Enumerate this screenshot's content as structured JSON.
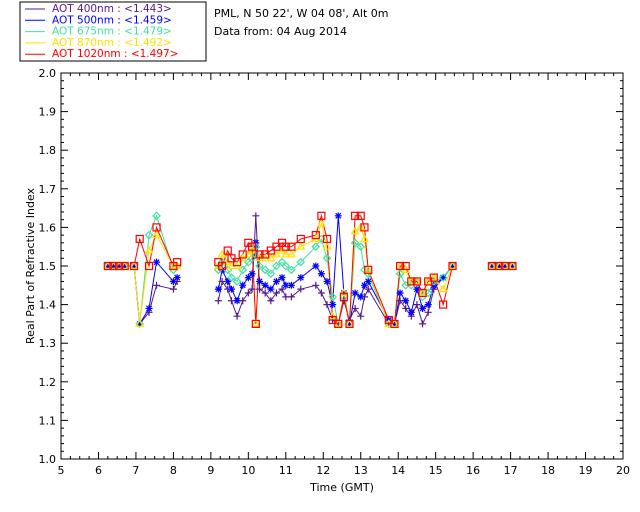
{
  "header": {
    "site": "PML, N 50 22', W 04 08', Alt 0m",
    "date": "Data from: 04 Aug 2014"
  },
  "chart_data": {
    "type": "scatter",
    "xlabel": "Time (GMT)",
    "ylabel": "Real Part of Refractive Index",
    "xlim": [
      5,
      20
    ],
    "ylim": [
      1.0,
      2.0
    ],
    "xticks": [
      "5",
      "6",
      "7",
      "8",
      "9",
      "10",
      "11",
      "12",
      "13",
      "14",
      "15",
      "16",
      "17",
      "18",
      "19",
      "20"
    ],
    "yticks": [
      "1.0",
      "1.1",
      "1.2",
      "1.3",
      "1.4",
      "1.5",
      "1.6",
      "1.7",
      "1.8",
      "1.9",
      "2.0"
    ],
    "grid": false,
    "legend_position": "top-left-outside",
    "series": [
      {
        "name": "AOT  400nm : <1.443>",
        "color": "#551a8b",
        "marker": "plus",
        "points": [
          [
            6.25,
            1.5
          ],
          [
            6.4,
            1.5
          ],
          [
            6.55,
            1.5
          ],
          [
            6.7,
            1.5
          ],
          [
            6.95,
            1.5
          ],
          [
            7.1,
            1.35
          ],
          [
            7.35,
            1.38
          ],
          [
            7.55,
            1.45
          ],
          [
            8.0,
            1.44
          ],
          [
            8.1,
            1.46
          ],
          [
            9.2,
            1.41
          ],
          [
            9.3,
            1.46
          ],
          [
            9.45,
            1.44
          ],
          [
            9.55,
            1.41
          ],
          [
            9.7,
            1.37
          ],
          [
            9.85,
            1.41
          ],
          [
            10.0,
            1.43
          ],
          [
            10.1,
            1.44
          ],
          [
            10.2,
            1.63
          ],
          [
            10.3,
            1.44
          ],
          [
            10.45,
            1.43
          ],
          [
            10.6,
            1.41
          ],
          [
            10.75,
            1.43
          ],
          [
            10.9,
            1.44
          ],
          [
            11.0,
            1.42
          ],
          [
            11.15,
            1.42
          ],
          [
            11.4,
            1.44
          ],
          [
            11.8,
            1.45
          ],
          [
            11.95,
            1.43
          ],
          [
            12.1,
            1.4
          ],
          [
            12.25,
            1.36
          ],
          [
            12.4,
            1.35
          ],
          [
            12.55,
            1.41
          ],
          [
            12.7,
            1.36
          ],
          [
            12.85,
            1.39
          ],
          [
            13.0,
            1.37
          ],
          [
            13.1,
            1.42
          ],
          [
            13.2,
            1.44
          ],
          [
            13.75,
            1.35
          ],
          [
            13.9,
            1.35
          ],
          [
            14.05,
            1.41
          ],
          [
            14.2,
            1.39
          ],
          [
            14.35,
            1.37
          ],
          [
            14.5,
            1.4
          ],
          [
            14.65,
            1.35
          ],
          [
            14.8,
            1.38
          ],
          [
            14.95,
            1.44
          ],
          [
            15.2,
            1.47
          ],
          [
            15.45,
            1.5
          ],
          [
            16.5,
            1.5
          ],
          [
            16.7,
            1.5
          ],
          [
            16.85,
            1.5
          ],
          [
            17.05,
            1.5
          ]
        ]
      },
      {
        "name": "AOT  500nm : <1.459>",
        "color": "#0000ff",
        "marker": "asterisk",
        "points": [
          [
            6.25,
            1.5
          ],
          [
            6.4,
            1.5
          ],
          [
            6.55,
            1.5
          ],
          [
            6.7,
            1.5
          ],
          [
            6.95,
            1.5
          ],
          [
            7.1,
            1.35
          ],
          [
            7.35,
            1.39
          ],
          [
            7.55,
            1.51
          ],
          [
            8.0,
            1.46
          ],
          [
            8.1,
            1.47
          ],
          [
            9.2,
            1.44
          ],
          [
            9.3,
            1.49
          ],
          [
            9.45,
            1.46
          ],
          [
            9.55,
            1.44
          ],
          [
            9.7,
            1.41
          ],
          [
            9.85,
            1.45
          ],
          [
            10.0,
            1.47
          ],
          [
            10.1,
            1.48
          ],
          [
            10.2,
            1.56
          ],
          [
            10.3,
            1.46
          ],
          [
            10.45,
            1.45
          ],
          [
            10.6,
            1.44
          ],
          [
            10.75,
            1.46
          ],
          [
            10.9,
            1.47
          ],
          [
            11.0,
            1.45
          ],
          [
            11.15,
            1.45
          ],
          [
            11.4,
            1.47
          ],
          [
            11.8,
            1.5
          ],
          [
            11.95,
            1.48
          ],
          [
            12.1,
            1.46
          ],
          [
            12.25,
            1.4
          ],
          [
            12.4,
            1.63
          ],
          [
            12.55,
            1.43
          ],
          [
            12.7,
            1.35
          ],
          [
            12.85,
            1.43
          ],
          [
            13.0,
            1.42
          ],
          [
            13.1,
            1.45
          ],
          [
            13.2,
            1.46
          ],
          [
            13.75,
            1.36
          ],
          [
            13.9,
            1.35
          ],
          [
            14.05,
            1.43
          ],
          [
            14.2,
            1.41
          ],
          [
            14.35,
            1.38
          ],
          [
            14.5,
            1.44
          ],
          [
            14.65,
            1.39
          ],
          [
            14.8,
            1.4
          ],
          [
            14.95,
            1.45
          ],
          [
            15.2,
            1.47
          ],
          [
            15.45,
            1.5
          ],
          [
            16.5,
            1.5
          ],
          [
            16.7,
            1.5
          ],
          [
            16.85,
            1.5
          ],
          [
            17.05,
            1.5
          ]
        ]
      },
      {
        "name": "AOT  675nm : <1.479>",
        "color": "#40e0a0",
        "marker": "diamond",
        "points": [
          [
            6.25,
            1.5
          ],
          [
            6.4,
            1.5
          ],
          [
            6.55,
            1.5
          ],
          [
            6.7,
            1.5
          ],
          [
            6.95,
            1.5
          ],
          [
            7.1,
            1.35
          ],
          [
            7.35,
            1.58
          ],
          [
            7.55,
            1.63
          ],
          [
            8.0,
            1.49
          ],
          [
            8.1,
            1.5
          ],
          [
            9.2,
            1.49
          ],
          [
            9.3,
            1.51
          ],
          [
            9.45,
            1.49
          ],
          [
            9.55,
            1.47
          ],
          [
            9.7,
            1.46
          ],
          [
            9.85,
            1.49
          ],
          [
            10.0,
            1.51
          ],
          [
            10.1,
            1.52
          ],
          [
            10.2,
            1.55
          ],
          [
            10.3,
            1.5
          ],
          [
            10.45,
            1.49
          ],
          [
            10.6,
            1.48
          ],
          [
            10.75,
            1.5
          ],
          [
            10.9,
            1.51
          ],
          [
            11.0,
            1.5
          ],
          [
            11.15,
            1.49
          ],
          [
            11.4,
            1.51
          ],
          [
            11.8,
            1.55
          ],
          [
            11.95,
            1.57
          ],
          [
            12.1,
            1.52
          ],
          [
            12.25,
            1.42
          ],
          [
            12.4,
            1.35
          ],
          [
            12.55,
            1.42
          ],
          [
            12.7,
            1.35
          ],
          [
            12.85,
            1.56
          ],
          [
            13.0,
            1.55
          ],
          [
            13.1,
            1.49
          ],
          [
            13.2,
            1.48
          ],
          [
            13.75,
            1.35
          ],
          [
            13.9,
            1.35
          ],
          [
            14.05,
            1.48
          ],
          [
            14.2,
            1.45
          ],
          [
            14.35,
            1.45
          ],
          [
            14.5,
            1.46
          ],
          [
            14.65,
            1.42
          ],
          [
            14.8,
            1.43
          ],
          [
            14.95,
            1.46
          ],
          [
            15.2,
            1.47
          ],
          [
            15.45,
            1.5
          ],
          [
            16.5,
            1.5
          ],
          [
            16.7,
            1.5
          ],
          [
            16.85,
            1.5
          ],
          [
            17.05,
            1.5
          ]
        ]
      },
      {
        "name": "AOT  870nm : <1.492>",
        "color": "#ffe000",
        "marker": "triangle",
        "points": [
          [
            6.25,
            1.5
          ],
          [
            6.4,
            1.5
          ],
          [
            6.55,
            1.5
          ],
          [
            6.7,
            1.5
          ],
          [
            6.95,
            1.5
          ],
          [
            7.1,
            1.35
          ],
          [
            7.35,
            1.54
          ],
          [
            7.55,
            1.58
          ],
          [
            8.0,
            1.5
          ],
          [
            8.1,
            1.5
          ],
          [
            9.2,
            1.5
          ],
          [
            9.3,
            1.53
          ],
          [
            9.45,
            1.51
          ],
          [
            9.55,
            1.5
          ],
          [
            9.7,
            1.5
          ],
          [
            9.85,
            1.52
          ],
          [
            10.0,
            1.53
          ],
          [
            10.1,
            1.54
          ],
          [
            10.2,
            1.35
          ],
          [
            10.3,
            1.52
          ],
          [
            10.45,
            1.52
          ],
          [
            10.6,
            1.52
          ],
          [
            10.75,
            1.53
          ],
          [
            10.9,
            1.54
          ],
          [
            11.0,
            1.53
          ],
          [
            11.15,
            1.53
          ],
          [
            11.4,
            1.55
          ],
          [
            11.8,
            1.57
          ],
          [
            11.95,
            1.61
          ],
          [
            12.1,
            1.55
          ],
          [
            12.25,
            1.37
          ],
          [
            12.4,
            1.35
          ],
          [
            12.55,
            1.43
          ],
          [
            12.7,
            1.35
          ],
          [
            12.85,
            1.59
          ],
          [
            13.0,
            1.6
          ],
          [
            13.1,
            1.57
          ],
          [
            13.2,
            1.49
          ],
          [
            13.75,
            1.35
          ],
          [
            13.9,
            1.35
          ],
          [
            14.05,
            1.5
          ],
          [
            14.2,
            1.49
          ],
          [
            14.35,
            1.46
          ],
          [
            14.5,
            1.46
          ],
          [
            14.65,
            1.43
          ],
          [
            14.8,
            1.46
          ],
          [
            14.95,
            1.47
          ],
          [
            15.2,
            1.44
          ],
          [
            15.45,
            1.5
          ],
          [
            16.5,
            1.5
          ],
          [
            16.7,
            1.5
          ],
          [
            16.85,
            1.5
          ],
          [
            17.05,
            1.5
          ]
        ]
      },
      {
        "name": "AOT 1020nm : <1.497>",
        "color": "#ff0000",
        "marker": "square",
        "points": [
          [
            6.25,
            1.5
          ],
          [
            6.4,
            1.5
          ],
          [
            6.55,
            1.5
          ],
          [
            6.7,
            1.5
          ],
          [
            6.95,
            1.5
          ],
          [
            7.1,
            1.57
          ],
          [
            7.35,
            1.5
          ],
          [
            7.55,
            1.6
          ],
          [
            8.0,
            1.5
          ],
          [
            8.1,
            1.51
          ],
          [
            9.2,
            1.51
          ],
          [
            9.3,
            1.5
          ],
          [
            9.45,
            1.54
          ],
          [
            9.55,
            1.52
          ],
          [
            9.7,
            1.51
          ],
          [
            9.85,
            1.53
          ],
          [
            10.0,
            1.56
          ],
          [
            10.1,
            1.55
          ],
          [
            10.2,
            1.35
          ],
          [
            10.3,
            1.53
          ],
          [
            10.45,
            1.53
          ],
          [
            10.6,
            1.54
          ],
          [
            10.75,
            1.55
          ],
          [
            10.9,
            1.56
          ],
          [
            11.0,
            1.55
          ],
          [
            11.15,
            1.55
          ],
          [
            11.4,
            1.57
          ],
          [
            11.8,
            1.58
          ],
          [
            11.95,
            1.63
          ],
          [
            12.1,
            1.57
          ],
          [
            12.25,
            1.36
          ],
          [
            12.4,
            1.35
          ],
          [
            12.55,
            1.42
          ],
          [
            12.7,
            1.35
          ],
          [
            12.85,
            1.63
          ],
          [
            13.0,
            1.63
          ],
          [
            13.1,
            1.6
          ],
          [
            13.2,
            1.49
          ],
          [
            13.75,
            1.36
          ],
          [
            13.9,
            1.35
          ],
          [
            14.05,
            1.5
          ],
          [
            14.2,
            1.5
          ],
          [
            14.35,
            1.46
          ],
          [
            14.5,
            1.46
          ],
          [
            14.65,
            1.43
          ],
          [
            14.8,
            1.46
          ],
          [
            14.95,
            1.47
          ],
          [
            15.2,
            1.4
          ],
          [
            15.45,
            1.5
          ],
          [
            16.5,
            1.5
          ],
          [
            16.7,
            1.5
          ],
          [
            16.85,
            1.5
          ],
          [
            17.05,
            1.5
          ]
        ]
      }
    ]
  }
}
